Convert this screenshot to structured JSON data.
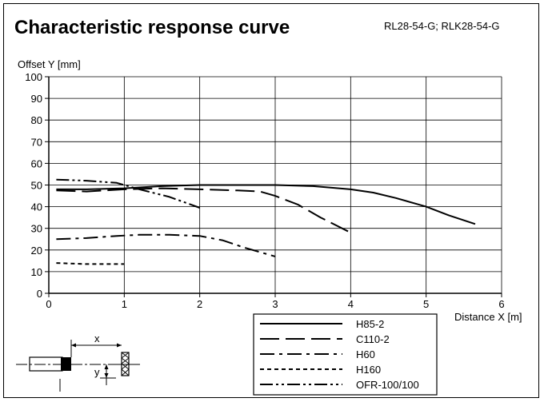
{
  "header": {
    "title": "Characteristic response curve",
    "models": "RL28-54-G; RLK28-54-G"
  },
  "chart_data": {
    "type": "line",
    "title": "Characteristic response curve",
    "xlabel": "Distance X [m]",
    "ylabel": "Offset Y [mm]",
    "xlim": [
      0,
      6
    ],
    "ylim": [
      0,
      100
    ],
    "xticks": [
      0,
      1,
      2,
      3,
      4,
      5,
      6
    ],
    "yticks": [
      0,
      10,
      20,
      30,
      40,
      50,
      60,
      70,
      80,
      90,
      100
    ],
    "grid": true,
    "legend_position": "bottom-center",
    "series": [
      {
        "name": "H85-2",
        "style": "solid",
        "x": [
          0.1,
          0.5,
          1.0,
          1.5,
          2.0,
          2.5,
          3.0,
          3.5,
          4.0,
          4.3,
          4.6,
          5.0,
          5.3,
          5.65
        ],
        "y": [
          48,
          48,
          48.5,
          49.5,
          50,
          50,
          50,
          49.5,
          48,
          46.5,
          44,
          40,
          36,
          32
        ]
      },
      {
        "name": "C110-2",
        "style": "longdash",
        "x": [
          0.1,
          0.5,
          1.0,
          1.5,
          2.0,
          2.5,
          2.8,
          3.0,
          3.3,
          3.6,
          4.0
        ],
        "y": [
          47.5,
          47,
          48,
          48.5,
          48,
          47.5,
          47,
          45,
          41,
          35,
          28
        ]
      },
      {
        "name": "H60",
        "style": "dashdot",
        "x": [
          0.1,
          0.5,
          0.9,
          1.2,
          1.6,
          2.0,
          2.3,
          2.6,
          3.0
        ],
        "y": [
          25,
          25.5,
          26.5,
          27,
          27,
          26.5,
          24.5,
          21,
          17
        ]
      },
      {
        "name": "H160",
        "style": "shortdash",
        "x": [
          0.1,
          0.5,
          1.0
        ],
        "y": [
          14,
          13.5,
          13.5
        ]
      },
      {
        "name": "OFR-100/100",
        "style": "dashdotdot",
        "x": [
          0.1,
          0.5,
          0.9,
          1.2,
          1.6,
          2.0
        ],
        "y": [
          52.5,
          52,
          51,
          48,
          44.5,
          39.5
        ]
      }
    ]
  }
}
